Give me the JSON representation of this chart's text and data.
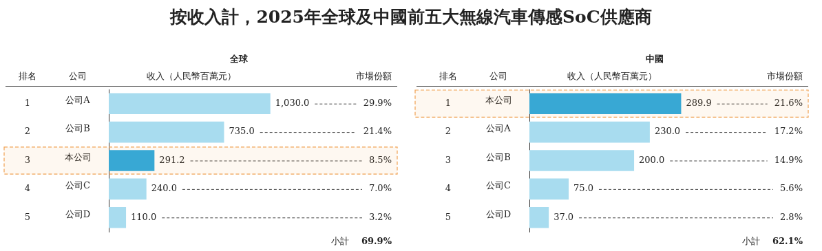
{
  "chart_data": [
    {
      "type": "bar",
      "orientation": "horizontal",
      "title": "按收入計，2025年全球及中國前五大無線汽車傳感SoC供應商",
      "subtitle": "全球",
      "xlabel": "收入（人民幣百萬元）",
      "categories": [
        "公司A",
        "公司B",
        "本公司",
        "公司C",
        "公司D"
      ],
      "values": [
        1030.0,
        735.0,
        291.2,
        240.0,
        110.0
      ],
      "value_labels": [
        "1,030.0",
        "735.0",
        "291.2",
        "240.0",
        "110.0"
      ],
      "colors": [
        "#a8dcef",
        "#a8dcef",
        "#29a9e0",
        "#a8dcef",
        "#a8dcef"
      ],
      "xlim": [
        0,
        1830
      ],
      "tick_labels": "y",
      "grid": false,
      "legend": false,
      "bands": [
        {
          "axis": "y",
          "from": "本公司",
          "to": "本公司",
          "color": "#f0a050"
        }
      ],
      "annotations": [
        "排名",
        "公司",
        "市場份額",
        "小計",
        "69.9%",
        "1",
        "2",
        "3",
        "4",
        "5",
        "29.9%",
        "21.4%",
        "8.5%",
        "7.0%",
        "3.2%"
      ]
    },
    {
      "type": "bar",
      "orientation": "horizontal",
      "title": "中國",
      "xlabel": "收入（人民幣百萬元）",
      "categories": [
        "本公司",
        "公司A",
        "公司B",
        "公司C",
        "公司D"
      ],
      "values": [
        289.9,
        230.0,
        200.0,
        75.0,
        37.0
      ],
      "value_labels": [
        "289.9",
        "230.0",
        "200.0",
        "75.0",
        "37.0"
      ],
      "colors": [
        "#29a9e0",
        "#a8dcef",
        "#a8dcef",
        "#a8dcef",
        "#a8dcef"
      ],
      "xlim": [
        0,
        530
      ],
      "tick_labels": "y",
      "grid": false,
      "legend": false,
      "bands": [
        {
          "axis": "y",
          "from": "本公司",
          "to": "本公司",
          "color": "#f0a050"
        }
      ],
      "annotations": [
        "排名",
        "公司",
        "市場份額",
        "小計",
        "62.1%",
        "1",
        "2",
        "3",
        "4",
        "5",
        "21.6%",
        "17.2%",
        "14.9%",
        "5.6%",
        "2.8%"
      ]
    }
  ]
}
